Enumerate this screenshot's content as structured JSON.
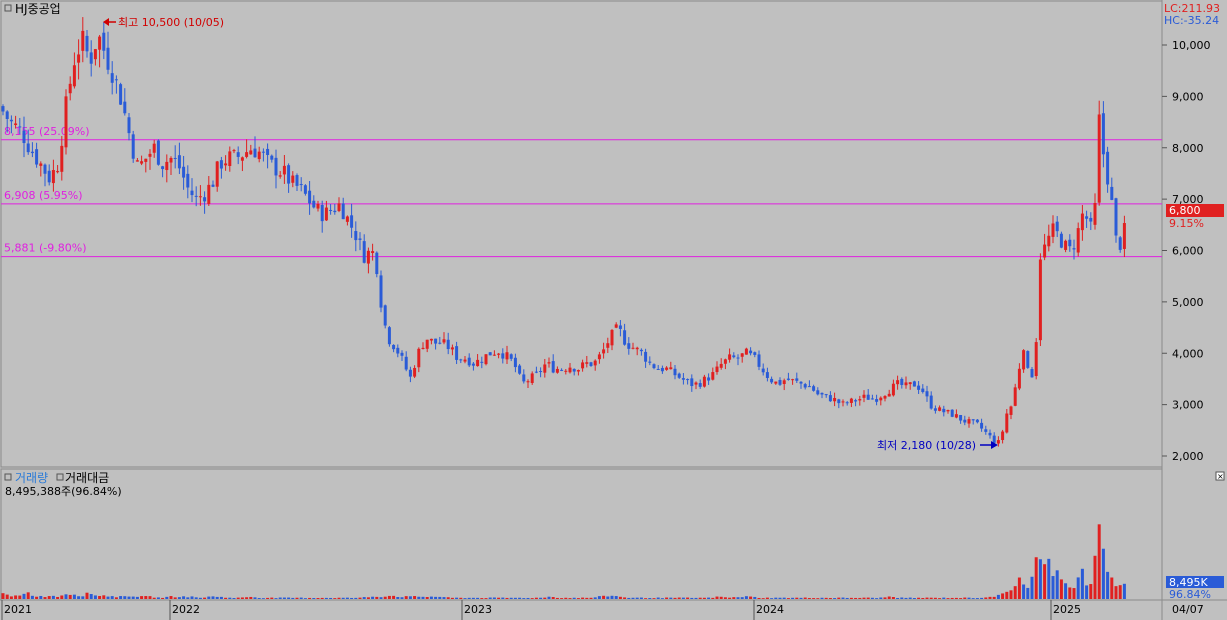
{
  "app": {
    "stock_name": "HJ중공업",
    "lc_label": "LC:211.93",
    "hc_label": "HC:-35.24",
    "volume_tab": "거래량",
    "value_tab": "거래대금",
    "volume_info": "8,495,388주(96.84%)",
    "current_price_badge": "6,800",
    "current_change_badge": "9.15%",
    "volume_badge": "8,495K",
    "volume_pct_badge": "96.84%",
    "date_badge": "04/07"
  },
  "colors": {
    "background": "#c0c0c0",
    "up": "#e02020",
    "down": "#2a5bd7",
    "level_line": "#e020e0",
    "high_label": "#d00000",
    "low_label": "#0000c0",
    "price_badge": "#e02020",
    "volume_badge": "#2a5bd7"
  },
  "chart_data": {
    "type": "candlestick",
    "price_axis": {
      "min": 2000,
      "max": 10500,
      "ticks": [
        "10,000",
        "9,000",
        "8,000",
        "7,000",
        "6,000",
        "5,000",
        "4,000",
        "3,000",
        "2,000"
      ]
    },
    "x_axis": {
      "labels": [
        "2021",
        "2022",
        "2023",
        "2024",
        "2025"
      ]
    },
    "levels": [
      {
        "value": 8155,
        "label": "8,155 (25.09%)"
      },
      {
        "value": 6908,
        "label": "6,908 (5.95%)"
      },
      {
        "value": 5881,
        "label": "5,881 (-9.80%)"
      }
    ],
    "annotations": {
      "high": {
        "label": "최고 10,500 (10/05)",
        "value": 10500
      },
      "low": {
        "label": "최저 2,180 (10/28)",
        "value": 2180
      }
    },
    "price_path": [
      [
        0,
        8800
      ],
      [
        10,
        8500
      ],
      [
        22,
        8300
      ],
      [
        30,
        8000
      ],
      [
        40,
        7700
      ],
      [
        50,
        7400
      ],
      [
        58,
        7700
      ],
      [
        66,
        8800
      ],
      [
        74,
        9700
      ],
      [
        82,
        10100
      ],
      [
        90,
        9700
      ],
      [
        98,
        10200
      ],
      [
        106,
        9800
      ],
      [
        114,
        9400
      ],
      [
        122,
        8900
      ],
      [
        130,
        8200
      ],
      [
        138,
        7600
      ],
      [
        146,
        7800
      ],
      [
        154,
        8000
      ],
      [
        162,
        7700
      ],
      [
        172,
        7800
      ],
      [
        180,
        7600
      ],
      [
        188,
        7200
      ],
      [
        196,
        7000
      ],
      [
        204,
        7100
      ],
      [
        212,
        7300
      ],
      [
        220,
        7700
      ],
      [
        228,
        7800
      ],
      [
        236,
        7800
      ],
      [
        244,
        7900
      ],
      [
        252,
        8000
      ],
      [
        260,
        7900
      ],
      [
        268,
        7700
      ],
      [
        276,
        7600
      ],
      [
        284,
        7500
      ],
      [
        292,
        7300
      ],
      [
        300,
        7200
      ],
      [
        308,
        7000
      ],
      [
        316,
        6800
      ],
      [
        324,
        6700
      ],
      [
        332,
        6800
      ],
      [
        340,
        6900
      ],
      [
        348,
        6600
      ],
      [
        356,
        6300
      ],
      [
        364,
        5900
      ],
      [
        372,
        6000
      ],
      [
        378,
        5600
      ],
      [
        382,
        4800
      ],
      [
        388,
        4300
      ],
      [
        396,
        4100
      ],
      [
        404,
        3800
      ],
      [
        410,
        3500
      ],
      [
        418,
        4000
      ],
      [
        426,
        4300
      ],
      [
        434,
        4200
      ],
      [
        442,
        4200
      ],
      [
        450,
        4100
      ],
      [
        458,
        3900
      ],
      [
        466,
        3900
      ],
      [
        474,
        3800
      ],
      [
        482,
        3900
      ],
      [
        490,
        4000
      ],
      [
        498,
        4050
      ],
      [
        506,
        3950
      ],
      [
        514,
        3800
      ],
      [
        522,
        3400
      ],
      [
        530,
        3500
      ],
      [
        538,
        3600
      ],
      [
        546,
        3800
      ],
      [
        554,
        3700
      ],
      [
        562,
        3700
      ],
      [
        570,
        3750
      ],
      [
        578,
        3700
      ],
      [
        586,
        3800
      ],
      [
        594,
        3800
      ],
      [
        602,
        4000
      ],
      [
        610,
        4300
      ],
      [
        618,
        4500
      ],
      [
        626,
        4200
      ],
      [
        634,
        4100
      ],
      [
        642,
        4000
      ],
      [
        650,
        3800
      ],
      [
        658,
        3700
      ],
      [
        666,
        3700
      ],
      [
        674,
        3600
      ],
      [
        682,
        3500
      ],
      [
        690,
        3400
      ],
      [
        698,
        3400
      ],
      [
        706,
        3500
      ],
      [
        714,
        3600
      ],
      [
        722,
        3800
      ],
      [
        730,
        3900
      ],
      [
        738,
        3900
      ],
      [
        746,
        4000
      ],
      [
        754,
        3900
      ],
      [
        762,
        3700
      ],
      [
        770,
        3500
      ],
      [
        778,
        3400
      ],
      [
        786,
        3500
      ],
      [
        794,
        3450
      ],
      [
        802,
        3400
      ],
      [
        810,
        3350
      ],
      [
        818,
        3200
      ],
      [
        826,
        3150
      ],
      [
        834,
        3100
      ],
      [
        842,
        3000
      ],
      [
        850,
        3050
      ],
      [
        858,
        3100
      ],
      [
        866,
        3150
      ],
      [
        874,
        3100
      ],
      [
        882,
        3200
      ],
      [
        890,
        3300
      ],
      [
        898,
        3400
      ],
      [
        906,
        3350
      ],
      [
        914,
        3400
      ],
      [
        922,
        3300
      ],
      [
        930,
        3000
      ],
      [
        938,
        2900
      ],
      [
        946,
        2850
      ],
      [
        954,
        2800
      ],
      [
        962,
        2700
      ],
      [
        970,
        2650
      ],
      [
        978,
        2600
      ],
      [
        986,
        2450
      ],
      [
        994,
        2300
      ],
      [
        1000,
        2250
      ],
      [
        1006,
        2800
      ],
      [
        1012,
        3000
      ],
      [
        1018,
        3600
      ],
      [
        1024,
        4200
      ],
      [
        1030,
        3300
      ],
      [
        1036,
        4200
      ],
      [
        1040,
        5900
      ],
      [
        1046,
        6100
      ],
      [
        1052,
        6400
      ],
      [
        1058,
        6300
      ],
      [
        1064,
        6100
      ],
      [
        1070,
        6000
      ],
      [
        1076,
        6200
      ],
      [
        1082,
        6700
      ],
      [
        1088,
        6600
      ],
      [
        1094,
        6200
      ],
      [
        1098,
        8700
      ],
      [
        1104,
        7800
      ],
      [
        1110,
        7200
      ],
      [
        1116,
        6200
      ],
      [
        1122,
        6100
      ],
      [
        1128,
        6800
      ]
    ],
    "volume_path": [
      [
        2,
        5
      ],
      [
        10,
        2
      ],
      [
        18,
        3
      ],
      [
        26,
        6
      ],
      [
        34,
        3
      ],
      [
        42,
        2
      ],
      [
        50,
        3
      ],
      [
        58,
        2
      ],
      [
        66,
        5
      ],
      [
        74,
        4
      ],
      [
        82,
        3
      ],
      [
        90,
        5
      ],
      [
        98,
        3
      ],
      [
        106,
        3
      ],
      [
        114,
        2
      ],
      [
        122,
        2
      ],
      [
        130,
        3
      ],
      [
        140,
        2
      ],
      [
        150,
        2
      ],
      [
        160,
        1
      ],
      [
        170,
        2
      ],
      [
        180,
        2
      ],
      [
        190,
        2
      ],
      [
        200,
        1
      ],
      [
        210,
        2
      ],
      [
        220,
        2
      ],
      [
        230,
        1
      ],
      [
        240,
        1
      ],
      [
        250,
        2
      ],
      [
        260,
        1
      ],
      [
        270,
        1
      ],
      [
        280,
        1
      ],
      [
        290,
        1
      ],
      [
        300,
        1
      ],
      [
        310,
        1
      ],
      [
        320,
        1
      ],
      [
        330,
        1
      ],
      [
        340,
        1
      ],
      [
        350,
        1
      ],
      [
        360,
        1
      ],
      [
        370,
        2
      ],
      [
        380,
        2
      ],
      [
        390,
        3
      ],
      [
        400,
        2
      ],
      [
        410,
        2
      ],
      [
        420,
        2
      ],
      [
        430,
        2
      ],
      [
        440,
        2
      ],
      [
        450,
        1
      ],
      [
        460,
        1
      ],
      [
        470,
        1
      ],
      [
        480,
        1
      ],
      [
        490,
        1
      ],
      [
        500,
        1
      ],
      [
        510,
        1
      ],
      [
        520,
        1
      ],
      [
        530,
        1
      ],
      [
        540,
        1
      ],
      [
        550,
        2
      ],
      [
        560,
        1
      ],
      [
        570,
        1
      ],
      [
        580,
        1
      ],
      [
        590,
        1
      ],
      [
        600,
        2
      ],
      [
        610,
        3
      ],
      [
        620,
        2
      ],
      [
        630,
        1
      ],
      [
        640,
        1
      ],
      [
        650,
        1
      ],
      [
        660,
        1
      ],
      [
        670,
        1
      ],
      [
        680,
        1
      ],
      [
        690,
        1
      ],
      [
        700,
        1
      ],
      [
        710,
        1
      ],
      [
        720,
        2
      ],
      [
        730,
        1
      ],
      [
        740,
        2
      ],
      [
        750,
        2
      ],
      [
        760,
        1
      ],
      [
        770,
        1
      ],
      [
        780,
        1
      ],
      [
        790,
        1
      ],
      [
        800,
        1
      ],
      [
        810,
        1
      ],
      [
        820,
        1
      ],
      [
        830,
        1
      ],
      [
        840,
        1
      ],
      [
        850,
        1
      ],
      [
        860,
        1
      ],
      [
        870,
        1
      ],
      [
        880,
        1
      ],
      [
        890,
        2
      ],
      [
        900,
        1
      ],
      [
        910,
        1
      ],
      [
        920,
        1
      ],
      [
        930,
        1
      ],
      [
        940,
        1
      ],
      [
        950,
        1
      ],
      [
        960,
        1
      ],
      [
        970,
        1
      ],
      [
        980,
        1
      ],
      [
        990,
        2
      ],
      [
        1000,
        3
      ],
      [
        1006,
        5
      ],
      [
        1012,
        8
      ],
      [
        1018,
        20
      ],
      [
        1024,
        14
      ],
      [
        1030,
        9
      ],
      [
        1036,
        34
      ],
      [
        1042,
        27
      ],
      [
        1052,
        30
      ],
      [
        1058,
        21
      ],
      [
        1064,
        19
      ],
      [
        1070,
        12
      ],
      [
        1076,
        11
      ],
      [
        1082,
        28
      ],
      [
        1088,
        12
      ],
      [
        1094,
        10
      ],
      [
        1098,
        96
      ],
      [
        1104,
        28
      ],
      [
        1110,
        18
      ],
      [
        1116,
        12
      ],
      [
        1122,
        16
      ],
      [
        1128,
        15
      ]
    ]
  }
}
